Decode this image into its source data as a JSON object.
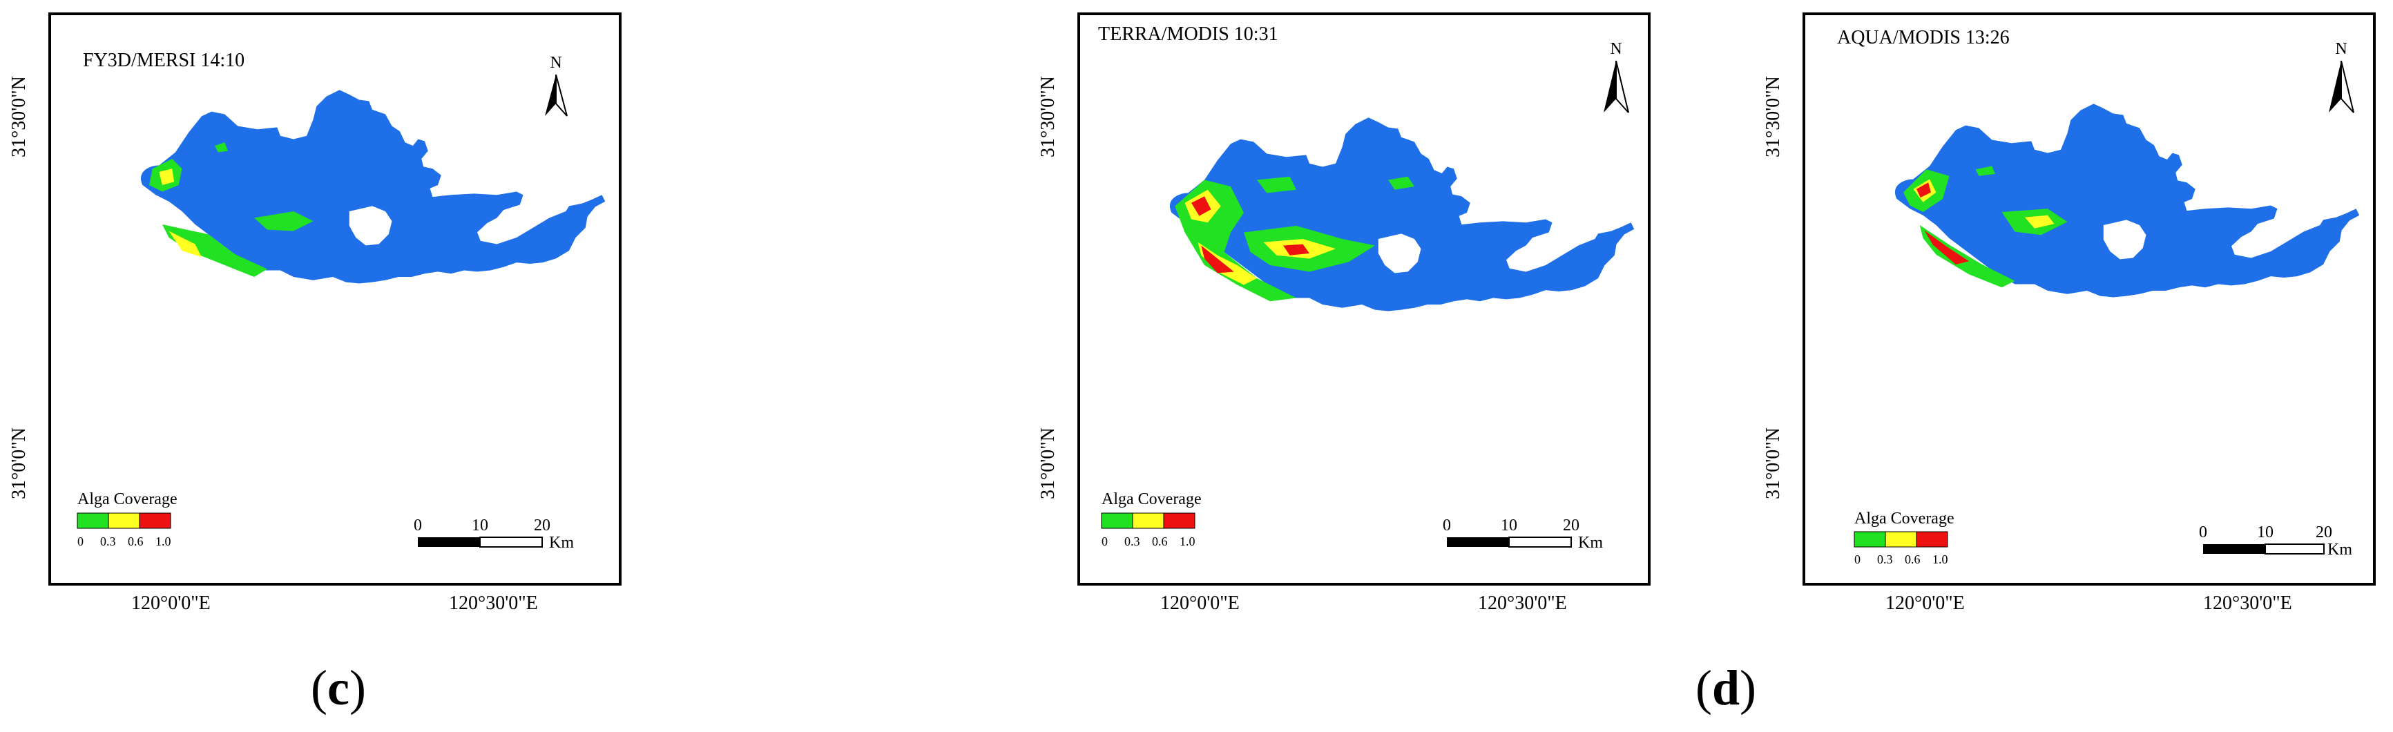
{
  "colors": {
    "water": "#1f6fe8",
    "low": "#22e022",
    "mid": "#ffff22",
    "high": "#ee1111",
    "frame": "#000000"
  },
  "maps": [
    {
      "id": "fy3d",
      "title": "FY3D/MERSI 14:10",
      "lat_ticks": [
        "31°30'0\"N",
        "31°0'0\"N"
      ],
      "lon_ticks": [
        "120°0'0\"E",
        "120°30'0\"E"
      ],
      "north_label": "N",
      "legend_title": "Alga Coverage",
      "legend_values": [
        "0",
        "0.3",
        "0.6",
        "1.0"
      ],
      "scale_values": [
        "0",
        "10",
        "20"
      ],
      "scale_unit": "Km",
      "bloom_intensity": "low"
    },
    {
      "id": "terra",
      "title": "TERRA/MODIS 10:31",
      "lat_ticks": [
        "31°30'0\"N",
        "31°0'0\"N"
      ],
      "lon_ticks": [
        "120°0'0\"E",
        "120°30'0\"E"
      ],
      "north_label": "N",
      "legend_title": "Alga Coverage",
      "legend_values": [
        "0",
        "0.3",
        "0.6",
        "1.0"
      ],
      "scale_values": [
        "0",
        "10",
        "20"
      ],
      "scale_unit": "Km",
      "bloom_intensity": "high"
    },
    {
      "id": "aqua",
      "title": "AQUA/MODIS 13:26",
      "lat_ticks": [
        "31°30'0\"N",
        "31°0'0\"N"
      ],
      "lon_ticks": [
        "120°0'0\"E",
        "120°30'0\"E"
      ],
      "north_label": "N",
      "legend_title": "Alga Coverage",
      "legend_values": [
        "0",
        "0.3",
        "0.6",
        "1.0"
      ],
      "scale_values": [
        "0",
        "10",
        "20"
      ],
      "scale_unit": "Km",
      "bloom_intensity": "medium"
    }
  ],
  "panel_labels": {
    "c": "c",
    "d": "d"
  }
}
